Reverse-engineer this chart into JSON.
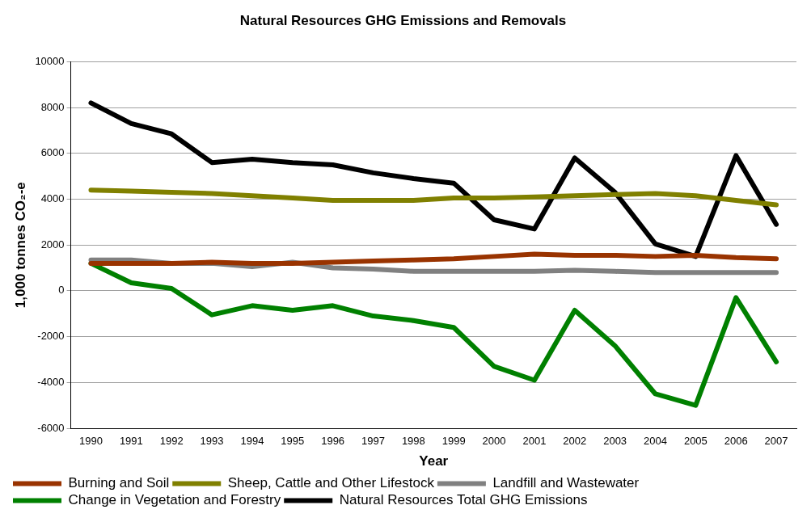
{
  "chart_data": {
    "type": "line",
    "title": "Natural Resources GHG Emissions and Removals",
    "xlabel": "Year",
    "ylabel": "1,000 tonnes CO₂-e",
    "categories": [
      "1990",
      "1991",
      "1992",
      "1993",
      "1994",
      "1995",
      "1996",
      "1997",
      "1998",
      "1999",
      "2000",
      "2001",
      "2002",
      "2003",
      "2004",
      "2005",
      "2006",
      "2007"
    ],
    "series": [
      {
        "name": "Burning and Soil",
        "color": "#993300",
        "values": [
          1200,
          1200,
          1200,
          1250,
          1200,
          1200,
          1250,
          1300,
          1350,
          1400,
          1500,
          1600,
          1550,
          1550,
          1500,
          1550,
          1450,
          1400
        ]
      },
      {
        "name": "Sheep, Cattle and Other Lifestock",
        "color": "#808000",
        "values": [
          4400,
          4350,
          4300,
          4250,
          4150,
          4050,
          3950,
          3950,
          3950,
          4050,
          4050,
          4100,
          4150,
          4200,
          4250,
          4150,
          3950,
          3750
        ]
      },
      {
        "name": "Landfill and Wastewater",
        "color": "#808080",
        "values": [
          1350,
          1350,
          1200,
          1200,
          1050,
          1250,
          1000,
          950,
          850,
          850,
          850,
          850,
          900,
          850,
          800,
          800,
          800,
          800
        ]
      },
      {
        "name": "Change in Vegetation and Forestry",
        "color": "#008000",
        "values": [
          1200,
          350,
          100,
          -1050,
          -650,
          -850,
          -650,
          -1100,
          -1300,
          -1600,
          -3300,
          -3900,
          -850,
          -2400,
          -4500,
          -5000,
          -300,
          -3100
        ]
      },
      {
        "name": "Natural Resources Total GHG Emissions",
        "color": "#000000",
        "values": [
          8200,
          7300,
          6850,
          5600,
          5750,
          5600,
          5500,
          5150,
          4900,
          4700,
          3100,
          2700,
          5800,
          4300,
          2050,
          1500,
          5900,
          2900
        ]
      }
    ],
    "ylim": [
      -6000,
      10000
    ],
    "yticks": [
      -6000,
      -4000,
      -2000,
      0,
      2000,
      4000,
      6000,
      8000,
      10000
    ],
    "grid": "y",
    "legend": "bottom",
    "marker": "none",
    "line_style": "solid"
  }
}
